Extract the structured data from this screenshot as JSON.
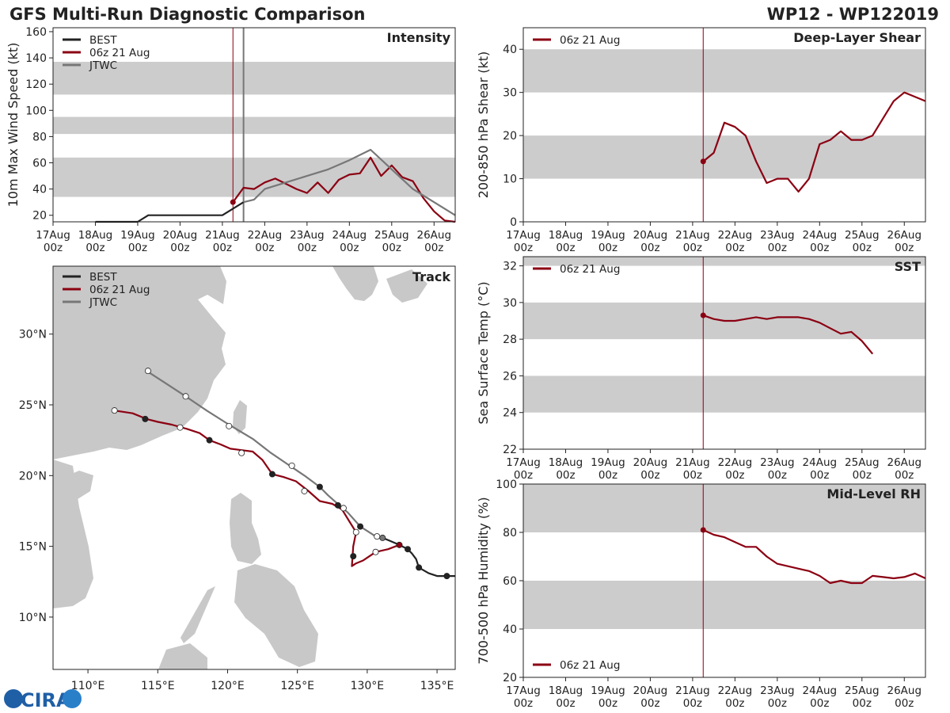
{
  "header": {
    "title": "GFS Multi-Run Diagnostic Comparison",
    "storm_id": "WP12 - WP122019"
  },
  "colors": {
    "best": "#222222",
    "run": "#8b0012",
    "jtwc": "#777777",
    "band": "#cccccc",
    "land": "#c8c8c8",
    "init_line": "#8b0012"
  },
  "time_axis": {
    "start_day": 17,
    "end_day": 26.5,
    "tick_days": [
      17,
      18,
      19,
      20,
      21,
      22,
      23,
      24,
      25,
      26
    ],
    "tick_labels": [
      [
        "17Aug",
        "00z"
      ],
      [
        "18Aug",
        "00z"
      ],
      [
        "19Aug",
        "00z"
      ],
      [
        "20Aug",
        "00z"
      ],
      [
        "21Aug",
        "00z"
      ],
      [
        "22Aug",
        "00z"
      ],
      [
        "23Aug",
        "00z"
      ],
      [
        "24Aug",
        "00z"
      ],
      [
        "25Aug",
        "00z"
      ],
      [
        "26Aug",
        "00z"
      ]
    ]
  },
  "chart_data": [
    {
      "id": "intensity",
      "type": "line",
      "title": "Intensity",
      "ylabel": "10m Max Wind Speed (kt)",
      "ylim": [
        15,
        163
      ],
      "yticks": [
        20,
        40,
        60,
        80,
        100,
        120,
        140,
        160
      ],
      "bands": [
        [
          34,
          64
        ],
        [
          82,
          95
        ],
        [
          112,
          137
        ]
      ],
      "init_day": 21.25,
      "vlines": [
        {
          "day": 21.25,
          "series": "run"
        },
        {
          "day": 21.5,
          "series": "jtwc"
        }
      ],
      "legend": [
        {
          "label": "BEST",
          "series": "best"
        },
        {
          "label": "06z 21 Aug",
          "series": "run"
        },
        {
          "label": "JTWC",
          "series": "jtwc"
        }
      ],
      "series": [
        {
          "name": "BEST",
          "key": "best",
          "x": [
            18,
            18.25,
            18.5,
            18.75,
            19,
            19.25,
            19.5,
            19.75,
            20,
            20.25,
            20.5,
            20.75,
            21,
            21.25,
            21.5
          ],
          "y": [
            15,
            15,
            15,
            15,
            15,
            20,
            20,
            20,
            20,
            20,
            20,
            20,
            20,
            25,
            30
          ]
        },
        {
          "name": "06z 21 Aug",
          "key": "run",
          "x": [
            21.25,
            21.5,
            21.75,
            22,
            22.25,
            22.5,
            22.75,
            23,
            23.25,
            23.5,
            23.75,
            24,
            24.25,
            24.5,
            24.75,
            25,
            25.25,
            25.5,
            25.75,
            26,
            26.25,
            26.5
          ],
          "y": [
            30,
            41,
            40,
            45,
            48,
            44,
            40,
            37,
            45,
            37,
            47,
            51,
            52,
            64,
            50,
            58,
            49,
            46,
            33,
            23,
            16,
            14
          ]
        },
        {
          "name": "JTWC",
          "key": "jtwc",
          "x": [
            21.5,
            21.75,
            22,
            22.5,
            23,
            23.5,
            24,
            24.5,
            25,
            25.5,
            26,
            26.5
          ],
          "y": [
            30,
            32,
            40,
            45,
            50,
            55,
            62,
            70,
            55,
            40,
            30,
            20
          ]
        }
      ]
    },
    {
      "id": "shear",
      "type": "line",
      "title": "Deep-Layer Shear",
      "ylabel": "200-850 hPa Shear (kt)",
      "ylim": [
        0,
        45
      ],
      "yticks": [
        0,
        10,
        20,
        30,
        40
      ],
      "bands": [
        [
          10,
          20
        ],
        [
          30,
          40
        ]
      ],
      "init_day": 21.25,
      "vlines": [
        {
          "day": 21.25,
          "series": "run"
        }
      ],
      "legend": [
        {
          "label": "06z 21 Aug",
          "series": "run"
        }
      ],
      "series": [
        {
          "name": "06z 21 Aug",
          "key": "run",
          "x": [
            21.25,
            21.5,
            21.75,
            22,
            22.25,
            22.5,
            22.75,
            23,
            23.25,
            23.5,
            23.75,
            24,
            24.25,
            24.5,
            24.75,
            25,
            25.25,
            25.5,
            25.75,
            26,
            26.25,
            26.5
          ],
          "y": [
            14,
            16,
            23,
            22,
            20,
            14,
            9,
            10,
            10,
            7,
            10,
            18,
            19,
            21,
            19,
            19,
            20,
            24,
            28,
            30,
            29,
            28
          ]
        }
      ]
    },
    {
      "id": "sst",
      "type": "line",
      "title": "SST",
      "ylabel": "Sea Surface Temp (°C)",
      "ylim": [
        22,
        32.5
      ],
      "yticks": [
        22,
        24,
        26,
        28,
        30,
        32
      ],
      "bands": [
        [
          24,
          26
        ],
        [
          28,
          30
        ],
        [
          32,
          32.5
        ]
      ],
      "init_day": 21.25,
      "vlines": [
        {
          "day": 21.25,
          "series": "run"
        }
      ],
      "legend": [
        {
          "label": "06z 21 Aug",
          "series": "run"
        }
      ],
      "series": [
        {
          "name": "06z 21 Aug",
          "key": "run",
          "x": [
            21.25,
            21.5,
            21.75,
            22,
            22.25,
            22.5,
            22.75,
            23,
            23.25,
            23.5,
            23.75,
            24,
            24.25,
            24.5,
            24.75,
            25,
            25.25
          ],
          "y": [
            29.3,
            29.1,
            29.0,
            29.0,
            29.1,
            29.2,
            29.1,
            29.2,
            29.2,
            29.2,
            29.1,
            28.9,
            28.6,
            28.3,
            28.4,
            27.9,
            27.2
          ]
        }
      ]
    },
    {
      "id": "rh",
      "type": "line",
      "title": "Mid-Level RH",
      "ylabel": "700-500 hPa Humidity (%)",
      "ylim": [
        20,
        100
      ],
      "yticks": [
        20,
        40,
        60,
        80,
        100
      ],
      "bands": [
        [
          40,
          60
        ],
        [
          80,
          100
        ]
      ],
      "init_day": 21.25,
      "vlines": [
        {
          "day": 21.25,
          "series": "run"
        }
      ],
      "legend": [
        {
          "label": "06z 21 Aug",
          "series": "run"
        }
      ],
      "series": [
        {
          "name": "06z 21 Aug",
          "key": "run",
          "x": [
            21.25,
            21.5,
            21.75,
            22,
            22.25,
            22.5,
            22.75,
            23,
            23.25,
            23.5,
            23.75,
            24,
            24.25,
            24.5,
            24.75,
            25,
            25.25,
            25.5,
            25.75,
            26,
            26.25,
            26.5
          ],
          "y": [
            81,
            79,
            78,
            76,
            74,
            74,
            70,
            67,
            66,
            65,
            64,
            62,
            59,
            60,
            59,
            59,
            62,
            61.5,
            61,
            61.5,
            63,
            61
          ]
        }
      ]
    },
    {
      "id": "track",
      "type": "scatter",
      "title": "Track",
      "xlim": [
        107.5,
        136.3
      ],
      "ylim": [
        6.3,
        34.8
      ],
      "lon_ticks": [
        110,
        115,
        120,
        125,
        130,
        135
      ],
      "lon_labels": [
        "110°E",
        "115°E",
        "120°E",
        "125°E",
        "130°E",
        "135°E"
      ],
      "lat_ticks": [
        10,
        15,
        20,
        25,
        30
      ],
      "lat_labels": [
        "10°N",
        "15°N",
        "20°N",
        "25°N",
        "30°N"
      ],
      "legend": [
        {
          "label": "BEST",
          "series": "best"
        },
        {
          "label": "06z 21 Aug",
          "series": "run"
        },
        {
          "label": "JTWC",
          "series": "jtwc"
        }
      ],
      "series": [
        {
          "name": "BEST",
          "key": "best",
          "lon": [
            136.3,
            135.7,
            135.0,
            134.4,
            133.7,
            133.5,
            133.2,
            132.9,
            132.3,
            131.6,
            131.1
          ],
          "lat": [
            12.9,
            12.9,
            12.9,
            13.1,
            13.5,
            14.1,
            14.5,
            14.8,
            15.1,
            15.4,
            15.6
          ],
          "markers": [
            {
              "lon": 135.7,
              "lat": 12.9,
              "fill": "best"
            },
            {
              "lon": 133.7,
              "lat": 13.5,
              "fill": "best"
            },
            {
              "lon": 132.9,
              "lat": 14.8,
              "fill": "best"
            }
          ]
        },
        {
          "name": "06z 21 Aug",
          "key": "run",
          "lon": [
            132.3,
            131.5,
            130.6,
            130.0,
            129.7,
            129.2,
            128.9,
            129.0,
            129.2,
            128.7,
            128.2,
            127.5,
            126.6,
            125.8,
            124.9,
            124.0,
            123.2,
            122.5,
            121.8,
            121.0,
            120.2,
            119.5,
            118.7,
            118.0,
            117.1,
            116.0,
            115.0,
            114.2,
            113.2,
            111.9
          ],
          "lat": [
            15.1,
            14.8,
            14.6,
            14.2,
            14.0,
            13.8,
            13.6,
            15.0,
            16.0,
            16.8,
            17.6,
            18.0,
            18.2,
            18.9,
            19.6,
            19.9,
            20.1,
            21.1,
            21.7,
            21.8,
            21.9,
            22.2,
            22.5,
            23.0,
            23.3,
            23.6,
            23.8,
            24.0,
            24.4,
            24.6
          ],
          "markers": [
            {
              "lon": 132.3,
              "lat": 15.1,
              "fill": "run"
            },
            {
              "lon": 130.6,
              "lat": 14.6,
              "fill": "open"
            },
            {
              "lon": 129.0,
              "lat": 14.3,
              "fill": "best"
            },
            {
              "lon": 129.2,
              "lat": 16.0,
              "fill": "open"
            },
            {
              "lon": 127.9,
              "lat": 17.9,
              "fill": "best"
            },
            {
              "lon": 125.5,
              "lat": 18.9,
              "fill": "open"
            },
            {
              "lon": 123.2,
              "lat": 20.1,
              "fill": "best"
            },
            {
              "lon": 121.0,
              "lat": 21.6,
              "fill": "open"
            },
            {
              "lon": 118.7,
              "lat": 22.5,
              "fill": "best"
            },
            {
              "lon": 116.6,
              "lat": 23.4,
              "fill": "open"
            },
            {
              "lon": 114.1,
              "lat": 24.0,
              "fill": "best"
            },
            {
              "lon": 111.9,
              "lat": 24.6,
              "fill": "open"
            }
          ]
        },
        {
          "name": "JTWC",
          "key": "jtwc",
          "lon": [
            131.1,
            130.6,
            129.5,
            128.6,
            128.0,
            127.2,
            126.6,
            125.5,
            124.3,
            123.1,
            121.8,
            120.1,
            118.5,
            117.0,
            115.6,
            114.2
          ],
          "lat": [
            15.6,
            15.7,
            16.4,
            17.4,
            17.9,
            18.6,
            19.2,
            20.0,
            20.8,
            21.6,
            22.6,
            23.6,
            24.6,
            25.6,
            26.5,
            27.4
          ],
          "markers": [
            {
              "lon": 131.1,
              "lat": 15.6,
              "fill": "jtwc"
            },
            {
              "lon": 130.7,
              "lat": 15.7,
              "fill": "open"
            },
            {
              "lon": 129.5,
              "lat": 16.4,
              "fill": "best"
            },
            {
              "lon": 128.3,
              "lat": 17.7,
              "fill": "open"
            },
            {
              "lon": 126.6,
              "lat": 19.2,
              "fill": "best"
            },
            {
              "lon": 124.6,
              "lat": 20.7,
              "fill": "open"
            },
            {
              "lon": 120.1,
              "lat": 23.5,
              "fill": "open"
            },
            {
              "lon": 117.0,
              "lat": 25.6,
              "fill": "open"
            },
            {
              "lon": 114.3,
              "lat": 27.4,
              "fill": "open"
            }
          ]
        }
      ]
    }
  ],
  "logo": {
    "text": "CIRA"
  }
}
